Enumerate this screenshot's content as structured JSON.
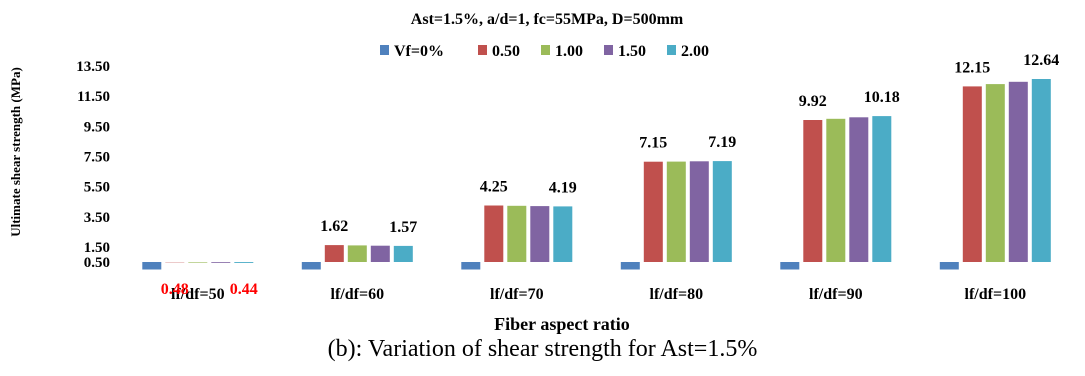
{
  "caption": "(b): Variation of shear strength for Ast=1.5%",
  "chart_data": {
    "type": "bar",
    "title": "Ast=1.5%, a/d=1, fc=55MPa, D=500mm",
    "xlabel": "Fiber aspect ratio",
    "ylabel": "Ultimate shear strength (MPa)",
    "ylim": [
      0.5,
      13.5
    ],
    "yticks": [
      "0.50",
      "1.50",
      "3.50",
      "5.50",
      "7.50",
      "9.50",
      "11.50",
      "13.50"
    ],
    "grid": false,
    "legend_position": "top",
    "categories": [
      "lf/df=50",
      "lf/df=60",
      "lf/df=70",
      "lf/df=80",
      "lf/df=90",
      "lf/df=100"
    ],
    "series": [
      {
        "name": "Vf=0%",
        "color": "#4F81BD",
        "values": [
          0.0,
          0.0,
          0.0,
          0.0,
          0.0,
          0.0
        ]
      },
      {
        "name": "0.50",
        "color": "#C0504D",
        "values": [
          0.48,
          1.62,
          4.25,
          7.15,
          9.92,
          12.15
        ]
      },
      {
        "name": "1.00",
        "color": "#9BBB59",
        "values": [
          0.46,
          1.6,
          4.23,
          7.16,
          10.0,
          12.3
        ]
      },
      {
        "name": "1.50",
        "color": "#8064A2",
        "values": [
          0.45,
          1.58,
          4.21,
          7.18,
          10.1,
          12.45
        ]
      },
      {
        "name": "2.00",
        "color": "#4BACC6",
        "values": [
          0.44,
          1.57,
          4.19,
          7.19,
          10.18,
          12.64
        ]
      }
    ],
    "data_labels": [
      {
        "category": 0,
        "series": 1,
        "text": "0.48",
        "color": "#FF0000"
      },
      {
        "category": 0,
        "series": 4,
        "text": "0.44",
        "color": "#FF0000"
      },
      {
        "category": 1,
        "series": 1,
        "text": "1.62",
        "color": "#000000"
      },
      {
        "category": 1,
        "series": 4,
        "text": "1.57",
        "color": "#000000"
      },
      {
        "category": 2,
        "series": 1,
        "text": "4.25",
        "color": "#000000"
      },
      {
        "category": 2,
        "series": 4,
        "text": "4.19",
        "color": "#000000"
      },
      {
        "category": 3,
        "series": 1,
        "text": "7.15",
        "color": "#000000"
      },
      {
        "category": 3,
        "series": 4,
        "text": "7.19",
        "color": "#000000"
      },
      {
        "category": 4,
        "series": 1,
        "text": "9.92",
        "color": "#000000"
      },
      {
        "category": 4,
        "series": 4,
        "text": "10.18",
        "color": "#000000"
      },
      {
        "category": 5,
        "series": 1,
        "text": "12.15",
        "color": "#000000"
      },
      {
        "category": 5,
        "series": 4,
        "text": "12.64",
        "color": "#000000"
      }
    ]
  }
}
